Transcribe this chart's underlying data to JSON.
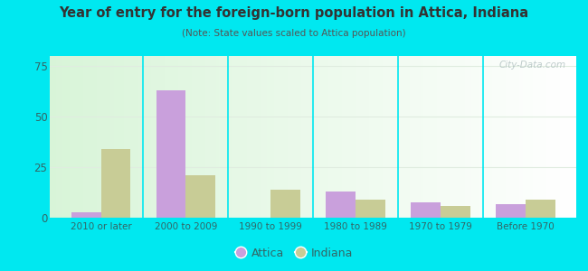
{
  "title": "Year of entry for the foreign-born population in Attica, Indiana",
  "subtitle": "(Note: State values scaled to Attica population)",
  "categories": [
    "2010 or later",
    "2000 to 2009",
    "1990 to 1999",
    "1980 to 1989",
    "1970 to 1979",
    "Before 1970"
  ],
  "attica_values": [
    3,
    63,
    0,
    13,
    8,
    7
  ],
  "indiana_values": [
    34,
    21,
    14,
    9,
    6,
    9
  ],
  "attica_color": "#c9a0dc",
  "indiana_color": "#c8cc96",
  "ylim": [
    0,
    80
  ],
  "yticks": [
    0,
    25,
    50,
    75
  ],
  "bar_width": 0.35,
  "background_color": "#00e8f0",
  "plot_bg_color_tl": "#d8f0d8",
  "plot_bg_color_tr": "#f0fbf0",
  "plot_bg_color_br": "#ffffff",
  "plot_bg_color_bl": "#e8f8e8",
  "title_color": "#333333",
  "subtitle_color": "#555555",
  "tick_label_color": "#336666",
  "legend_labels": [
    "Attica",
    "Indiana"
  ],
  "separator_color": "#00e8f0",
  "grid_color": "#e0ece0",
  "watermark": "City-Data.com"
}
